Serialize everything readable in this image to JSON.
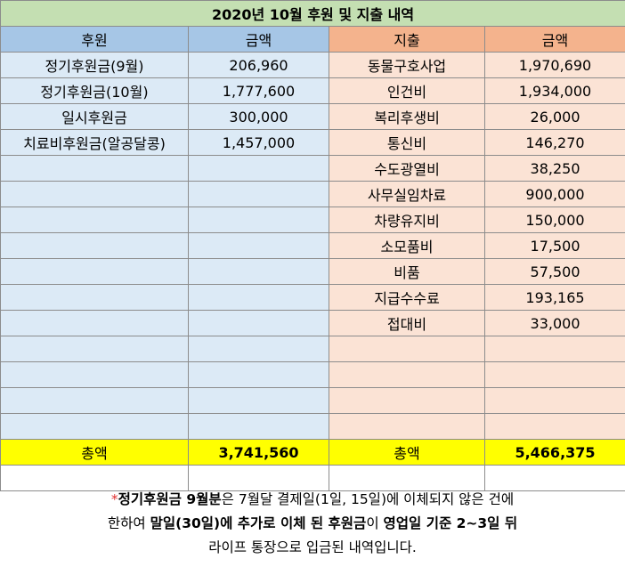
{
  "title": "2020년 10월 후원 및 지출 내역",
  "headers": {
    "donation": "후원",
    "donation_amount": "금액",
    "expense": "지출",
    "expense_amount": "금액"
  },
  "donations": [
    {
      "label": "정기후원금(9월)",
      "amount": "206,960"
    },
    {
      "label": "정기후원금(10월)",
      "amount": "1,777,600"
    },
    {
      "label": "일시후원금",
      "amount": "300,000"
    },
    {
      "label": "치료비후원금(알공달콩)",
      "amount": "1,457,000"
    }
  ],
  "expenses": [
    {
      "label": "동물구호사업",
      "amount": "1,970,690"
    },
    {
      "label": "인건비",
      "amount": "1,934,000"
    },
    {
      "label": "복리후생비",
      "amount": "26,000"
    },
    {
      "label": "통신비",
      "amount": "146,270"
    },
    {
      "label": "수도광열비",
      "amount": "38,250"
    },
    {
      "label": "사무실임차료",
      "amount": "900,000"
    },
    {
      "label": "차량유지비",
      "amount": "150,000"
    },
    {
      "label": "소모품비",
      "amount": "17,500"
    },
    {
      "label": "비품",
      "amount": "57,500"
    },
    {
      "label": "지급수수료",
      "amount": "193,165"
    },
    {
      "label": "접대비",
      "amount": "33,000"
    }
  ],
  "totals": {
    "donation_label": "총액",
    "donation_total": "3,741,560",
    "expense_label": "총액",
    "expense_total": "5,466,375"
  },
  "note": {
    "star": "*",
    "line1": {
      "bold1": "정기후원금 9월분",
      "text1": "은 7월달 결제일(1일, 15일)에 이체되지 않은 건에"
    },
    "line2": {
      "text1": "한하여 ",
      "bold1": "말일(30일)에 추가로 이체 된 후원금",
      "text2": "이 ",
      "bold2": "영업일 기준 2~3일 뒤"
    },
    "line3": "라이프 통장으로 입금된 내역입니다."
  },
  "colors": {
    "title_bg": "#c4dfb2",
    "blue_header": "#a6c6e6",
    "blue_cell": "#dceaf6",
    "orange_header": "#f4b38d",
    "orange_cell": "#fbe3d5",
    "total_bg": "#ffff00",
    "star": "#e03030"
  }
}
